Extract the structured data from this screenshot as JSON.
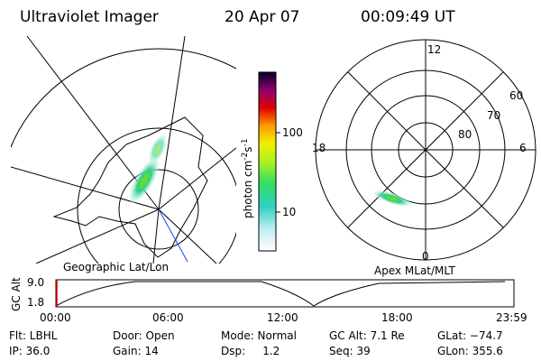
{
  "header": {
    "title": "Ultraviolet Imager",
    "date": "20 Apr 07",
    "time": "00:09:49 UT"
  },
  "geographic_panel": {
    "label": "Geographic Lat/Lon"
  },
  "colorbar": {
    "label": "photon cm",
    "exp1": "-2",
    "unit2": "s",
    "exp2": "-1",
    "ticks": [
      "100",
      "10"
    ]
  },
  "magnetic_panel": {
    "label": "Apex MLat/MLT",
    "mlt_labels": [
      "12",
      "18",
      "6",
      "0"
    ],
    "lat_labels": [
      "60",
      "70",
      "80"
    ]
  },
  "altitude_bar": {
    "label": "GC Alt",
    "y_labels": [
      "9.0",
      "1.8"
    ],
    "time_labels": [
      "00:00",
      "06:00",
      "12:00",
      "18:00",
      "23:59"
    ]
  },
  "status": {
    "rows": [
      [
        "Flt: LBHL",
        "Door: Open",
        "Mode: Normal",
        "GC Alt: 7.1 Re",
        "GLat: −74.7"
      ],
      [
        "IP: 36.0",
        "Gain: 14",
        "Dsp:     1.2",
        "Seq: 39",
        "GLon: 355.6"
      ]
    ]
  }
}
